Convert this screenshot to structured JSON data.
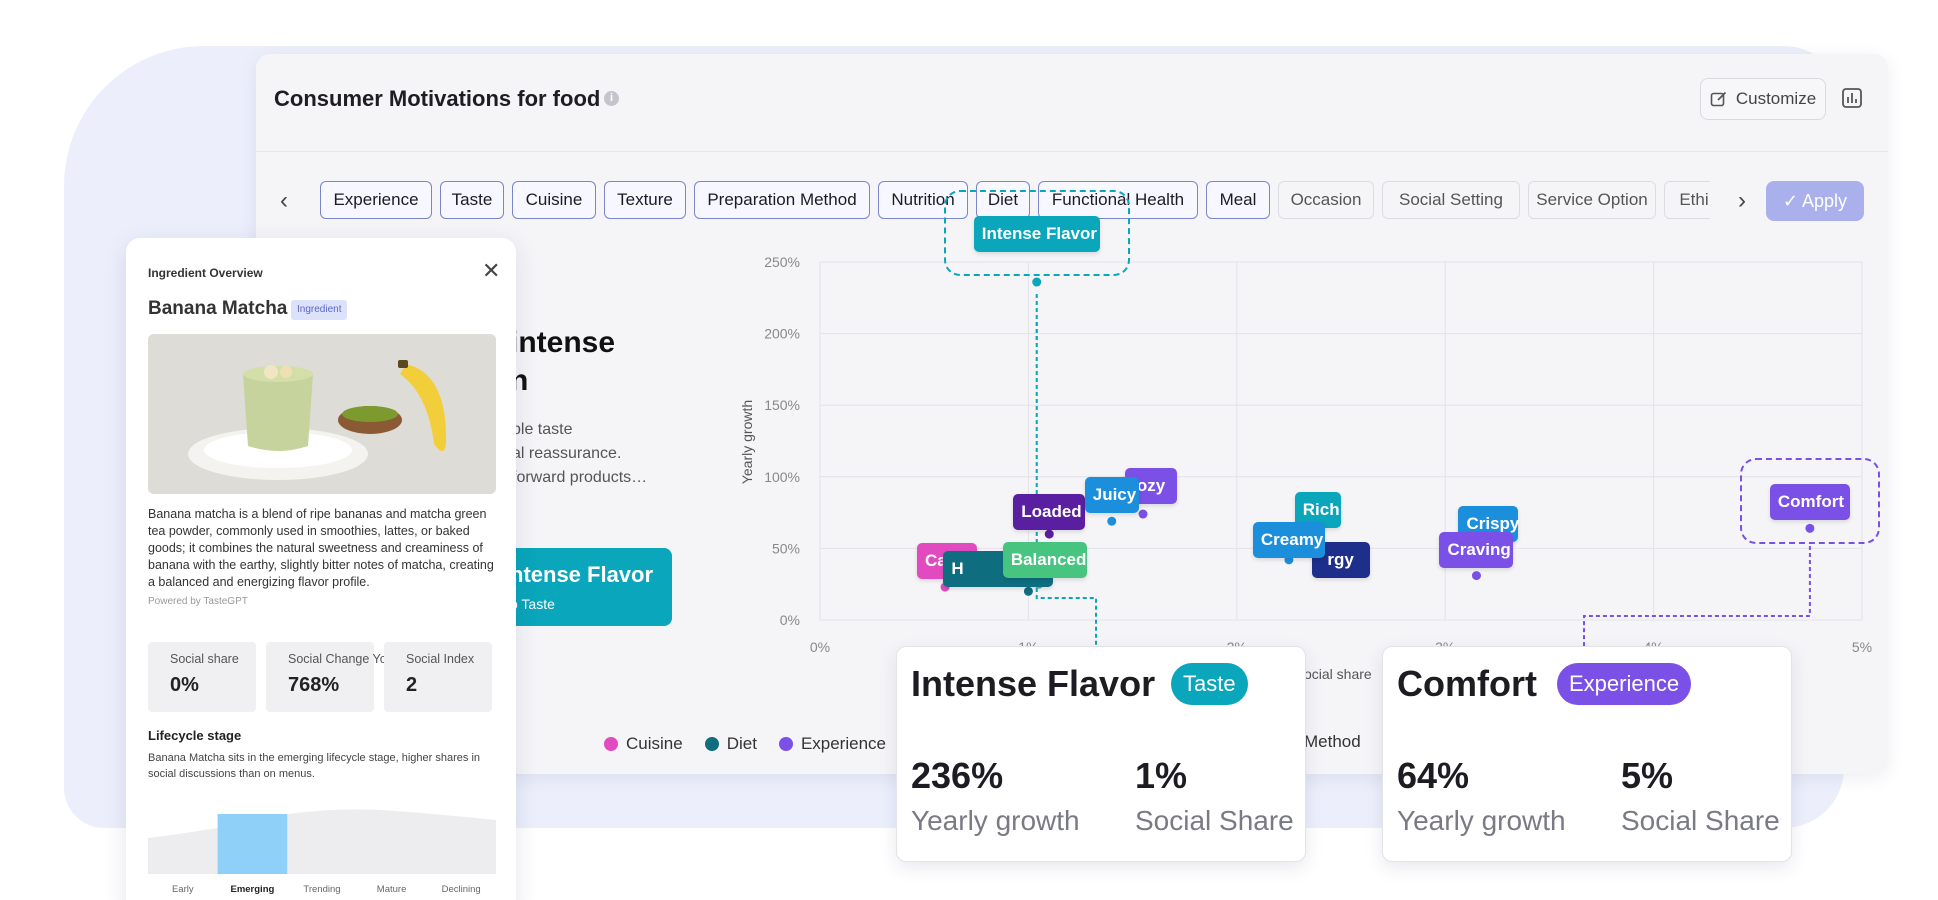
{
  "main": {
    "title": "Consumer Motivations for food",
    "info_icon": "i",
    "customize_label": "Customize",
    "apply_label": "Apply",
    "filters": [
      {
        "label": "Experience",
        "active": true
      },
      {
        "label": "Taste",
        "active": true
      },
      {
        "label": "Cuisine",
        "active": true
      },
      {
        "label": "Texture",
        "active": true
      },
      {
        "label": "Preparation Method",
        "active": true
      },
      {
        "label": "Nutrition",
        "active": true
      },
      {
        "label": "Diet",
        "active": true
      },
      {
        "label": "Functional Health",
        "active": true
      },
      {
        "label": "Meal",
        "active": true
      },
      {
        "label": "Occasion",
        "active": false
      },
      {
        "label": "Social Setting",
        "active": false
      },
      {
        "label": "Service Option",
        "active": false
      },
      {
        "label": "Ethi",
        "active": false
      }
    ]
  },
  "hero": {
    "title_line1": "intense",
    "title_line2": "n",
    "desc_line1": "ble taste",
    "desc_line2": "al reassurance.",
    "desc_line3": "forward products…",
    "button_title": "ntense Flavor",
    "button_sub": "p Taste"
  },
  "chart_data": {
    "type": "scatter",
    "xlabel": "ocial share",
    "ylabel": "Yearly growth",
    "x_ticks": [
      "0%",
      "1%",
      "2%",
      "3%",
      "4%",
      "5%"
    ],
    "y_ticks": [
      "0%",
      "50%",
      "100%",
      "150%",
      "200%",
      "250%"
    ],
    "xlim": [
      0,
      5
    ],
    "ylim": [
      0,
      250
    ],
    "grid": true,
    "points": [
      {
        "label": "Intense Flavor",
        "x": 1.04,
        "y": 236,
        "color": "#0aa6bb",
        "highlight": true
      },
      {
        "label": "Cajun",
        "x": 0.6,
        "y": 23,
        "color": "#e14bbf"
      },
      {
        "label": "H",
        "x": 1.0,
        "y": 20,
        "color": "#0e6e80"
      },
      {
        "label": "Balanced",
        "x": 1.05,
        "y": 25,
        "color": "#47c47f"
      },
      {
        "label": "Loaded",
        "x": 1.1,
        "y": 60,
        "color": "#5a1fa0"
      },
      {
        "label": "Juicy",
        "x": 1.4,
        "y": 69,
        "color": "#1c8fdc"
      },
      {
        "label": "ozy",
        "x": 1.55,
        "y": 74,
        "color": "#7b50e6"
      },
      {
        "label": "Rich",
        "x": 2.35,
        "y": 60,
        "color": "#0aa6bb"
      },
      {
        "label": "rgy",
        "x": 2.45,
        "y": 42,
        "color": "#1d2f8a"
      },
      {
        "label": "Creamy",
        "x": 2.25,
        "y": 42,
        "color": "#1c8fdc"
      },
      {
        "label": "Crispy",
        "x": 3.15,
        "y": 50,
        "color": "#1c8fdc"
      },
      {
        "label": "Craving",
        "x": 3.15,
        "y": 31,
        "color": "#7b50e6"
      },
      {
        "label": "Comfort",
        "x": 4.75,
        "y": 64,
        "color": "#7b50e6",
        "highlight": true
      }
    ],
    "legend": [
      {
        "name": "Cuisine",
        "color": "#e14bbf"
      },
      {
        "name": "Diet",
        "color": "#0e6e80"
      },
      {
        "name": "Experience",
        "color": "#7b50e6"
      }
    ],
    "legend_extra": "Method"
  },
  "cards": [
    {
      "title": "Intense Flavor",
      "badge": "Taste",
      "color": "#0aa6bb",
      "growth": "236%",
      "growth_label": "Yearly growth",
      "share": "1%",
      "share_label": "Social Share"
    },
    {
      "title": "Comfort",
      "badge": "Experience",
      "color": "#7b50e6",
      "growth": "64%",
      "growth_label": "Yearly growth",
      "share": "5%",
      "share_label": "Social Share"
    }
  ],
  "ingredient": {
    "header": "Ingredient Overview",
    "name": "Banana Matcha",
    "badge": "Ingredient",
    "description": "Banana matcha is a blend of ripe bananas and matcha green tea powder, commonly used in smoothies, lattes, or baked goods; it combines the natural sweetness and creaminess of banana with the earthy, slightly bitter notes of matcha, creating a balanced and energizing flavor profile.",
    "powered": "Powered by TasteGPT",
    "metrics": [
      {
        "label": "Social share",
        "value": "0%"
      },
      {
        "label": "Social Change YoY",
        "value": "768%"
      },
      {
        "label": "Social Index",
        "value": "2"
      }
    ],
    "lifecycle_title": "Lifecycle stage",
    "lifecycle_desc": "Banana Matcha sits in the emerging lifecycle stage, higher shares in social discussions than on menus.",
    "stages": [
      "Early",
      "Emerging",
      "Trending",
      "Mature",
      "Declining"
    ],
    "active_stage": 1
  }
}
